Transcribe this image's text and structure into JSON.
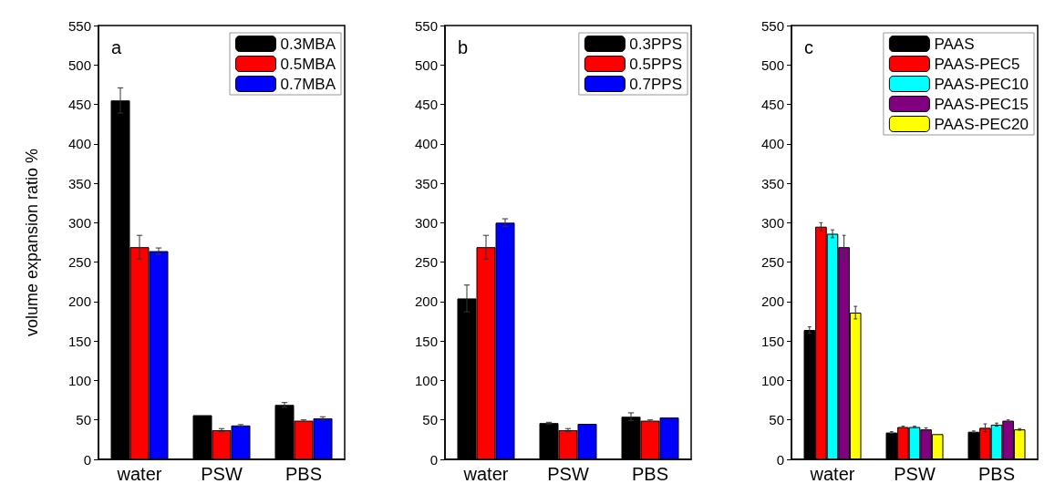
{
  "chart_data": [
    {
      "type": "bar",
      "ylabel": "volume expansion ratio %",
      "annotations": [
        "a"
      ],
      "categories": [
        "water",
        "PSW",
        "PBS"
      ],
      "ylim": [
        0,
        550
      ],
      "yticks": [
        0,
        50,
        100,
        150,
        200,
        250,
        300,
        350,
        400,
        450,
        500,
        550
      ],
      "legend": "top right",
      "grid": false,
      "series": [
        {
          "name": "0.3MBA",
          "color": "#000000",
          "values": [
            455,
            56,
            69
          ],
          "errors": [
            16,
            null,
            3
          ]
        },
        {
          "name": "0.5MBA",
          "color": "#ff0000",
          "values": [
            269,
            37,
            49
          ],
          "errors": [
            15,
            2,
            1
          ]
        },
        {
          "name": "0.7MBA",
          "color": "#0000ff",
          "values": [
            264,
            43,
            52
          ],
          "errors": [
            4,
            1,
            2
          ]
        }
      ]
    },
    {
      "type": "bar",
      "annotations": [
        "b"
      ],
      "categories": [
        "water",
        "PSW",
        "PBS"
      ],
      "ylim": [
        0,
        550
      ],
      "yticks": [
        0,
        50,
        100,
        150,
        200,
        250,
        300,
        350,
        400,
        450,
        500,
        550
      ],
      "legend": "top right",
      "grid": false,
      "series": [
        {
          "name": "0.3PPS",
          "color": "#000000",
          "values": [
            204,
            46,
            54
          ],
          "errors": [
            17,
            1,
            5
          ]
        },
        {
          "name": "0.5PPS",
          "color": "#ff0000",
          "values": [
            269,
            37,
            49
          ],
          "errors": [
            15,
            2,
            1
          ]
        },
        {
          "name": "0.7PPS",
          "color": "#0000ff",
          "values": [
            300,
            45,
            53
          ],
          "errors": [
            5,
            null,
            null
          ]
        }
      ]
    },
    {
      "type": "bar",
      "annotations": [
        "c"
      ],
      "categories": [
        "water",
        "PSW",
        "PBS"
      ],
      "ylim": [
        0,
        550
      ],
      "yticks": [
        0,
        50,
        100,
        150,
        200,
        250,
        300,
        350,
        400,
        450,
        500,
        550
      ],
      "legend": "top right",
      "grid": false,
      "series": [
        {
          "name": "PAAS",
          "color": "#000000",
          "values": [
            164,
            34,
            35
          ],
          "errors": [
            4,
            1,
            1
          ]
        },
        {
          "name": "PAAS-PEC5",
          "color": "#ff0000",
          "values": [
            295,
            41,
            40
          ],
          "errors": [
            5,
            1,
            5
          ]
        },
        {
          "name": "PAAS-PEC10",
          "color": "#00ffff",
          "values": [
            286,
            41,
            44
          ],
          "errors": [
            5,
            1,
            2
          ]
        },
        {
          "name": "PAAS-PEC15",
          "color": "#800080",
          "values": [
            269,
            38,
            49
          ],
          "errors": [
            15,
            2,
            1
          ]
        },
        {
          "name": "PAAS-PEC20",
          "color": "#ffff00",
          "values": [
            186,
            32,
            38
          ],
          "errors": [
            8,
            null,
            1
          ]
        }
      ]
    }
  ]
}
